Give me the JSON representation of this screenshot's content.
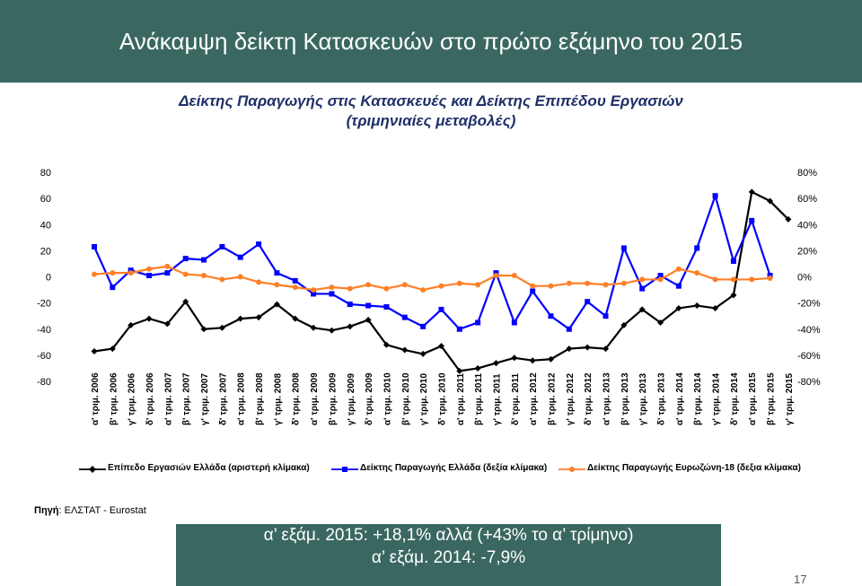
{
  "header": {
    "title": "Ανάκαμψη δείκτη Κατασκευών στο πρώτο εξάμηνο του 2015"
  },
  "subtitle": {
    "line1": "Δείκτης Παραγωγής στις Κατασκευές και Δείκτης Επιπέδου Εργασιών",
    "line2": "(τριμηνιαίες μεταβολές)"
  },
  "colors": {
    "header_bg": "#3a6861",
    "series_black": "#000000",
    "series_blue": "#0000ff",
    "series_orange": "#ff7f27"
  },
  "chart_data": {
    "type": "line",
    "categories": [
      "α' τριμ. 2006",
      "β' τριμ. 2006",
      "γ' τριμ. 2006",
      "δ' τριμ. 2006",
      "α' τριμ. 2007",
      "β' τριμ. 2007",
      "γ' τριμ. 2007",
      "δ' τριμ. 2007",
      "α' τριμ. 2008",
      "β' τριμ. 2008",
      "γ' τριμ. 2008",
      "δ' τριμ. 2008",
      "α' τριμ. 2009",
      "β' τριμ. 2009",
      "γ' τριμ. 2009",
      "δ' τριμ. 2009",
      "α' τριμ. 2010",
      "β' τριμ. 2010",
      "γ' τριμ. 2010",
      "δ' τριμ. 2010",
      "α' τριμ. 2011",
      "β' τριμ. 2011",
      "γ' τριμ. 2011",
      "δ' τριμ. 2011",
      "α' τριμ. 2012",
      "β' τριμ. 2012",
      "γ' τριμ. 2012",
      "δ' τριμ. 2012",
      "α' τριμ. 2013",
      "β' τριμ. 2013",
      "γ' τριμ. 2013",
      "δ' τριμ. 2013",
      "α' τριμ. 2014",
      "β' τριμ. 2014",
      "γ' τριμ. 2014",
      "δ' τριμ. 2014",
      "α' τριμ. 2015",
      "β' τριμ. 2015",
      "γ' τριμ. 2015"
    ],
    "left_ticks": [
      "80",
      "60",
      "40",
      "20",
      "0",
      "-20",
      "-40",
      "-60",
      "-80"
    ],
    "right_ticks": [
      "80%",
      "60%",
      "40%",
      "20%",
      "0%",
      "-20%",
      "-40%",
      "-60%",
      "-80%"
    ],
    "ylim_left": [
      -80,
      80
    ],
    "ylim_right": [
      -80,
      80
    ],
    "grid": false,
    "legend_position": "bottom",
    "series": [
      {
        "name": "Επίπεδο Εργασιών Ελλάδα (αριστερή κλίμακα)",
        "axis": "left",
        "color": "#000000",
        "marker": "diamond",
        "values": [
          -57,
          -55,
          -37,
          -32,
          -36,
          -19,
          -40,
          -39,
          -32,
          -31,
          -21,
          -32,
          -39,
          -41,
          -38,
          -33,
          -52,
          -56,
          -59,
          -53,
          -72,
          -70,
          -66,
          -62,
          -64,
          -63,
          -55,
          -54,
          -55,
          -37,
          -25,
          -35,
          -24,
          -22,
          -24,
          -14,
          65,
          58,
          44
        ]
      },
      {
        "name": "Δείκτης Παραγωγής Ελλάδα (δεξία κλίμακα)",
        "axis": "right",
        "color": "#0000ff",
        "marker": "square",
        "values": [
          23,
          -8,
          5,
          1,
          3,
          14,
          13,
          23,
          15,
          25,
          3,
          -3,
          -13,
          -13,
          -21,
          -22,
          -23,
          -31,
          -38,
          -25,
          -40,
          -35,
          3,
          -35,
          -11,
          -30,
          -40,
          -19,
          -30,
          22,
          -9,
          1,
          -7,
          22,
          62,
          12,
          43,
          1,
          null
        ]
      },
      {
        "name": "Δείκτης Παραγωγής Ευρωζώνη-18 (δεξια κλίμακα)",
        "axis": "right",
        "color": "#ff7f27",
        "marker": "circle",
        "values": [
          2,
          3,
          3,
          6,
          8,
          2,
          1,
          -2,
          0,
          -4,
          -6,
          -8,
          -10,
          -8,
          -9,
          -6,
          -9,
          -6,
          -10,
          -7,
          -5,
          -6,
          1,
          1,
          -7,
          -7,
          -5,
          -5,
          -6,
          -5,
          -2,
          -2,
          6,
          3,
          -2,
          -2,
          -2,
          -1,
          null
        ]
      }
    ]
  },
  "source": {
    "label": "Πηγή",
    "text": ": ΕΛΣΤΑΤ - Eurostat"
  },
  "callout": {
    "line1": "α’ εξάμ. 2015: +18,1% αλλά (+43% το α’ τρίμηνο)",
    "line2": "α’ εξάμ. 2014: -7,9%"
  },
  "page_number": "17"
}
